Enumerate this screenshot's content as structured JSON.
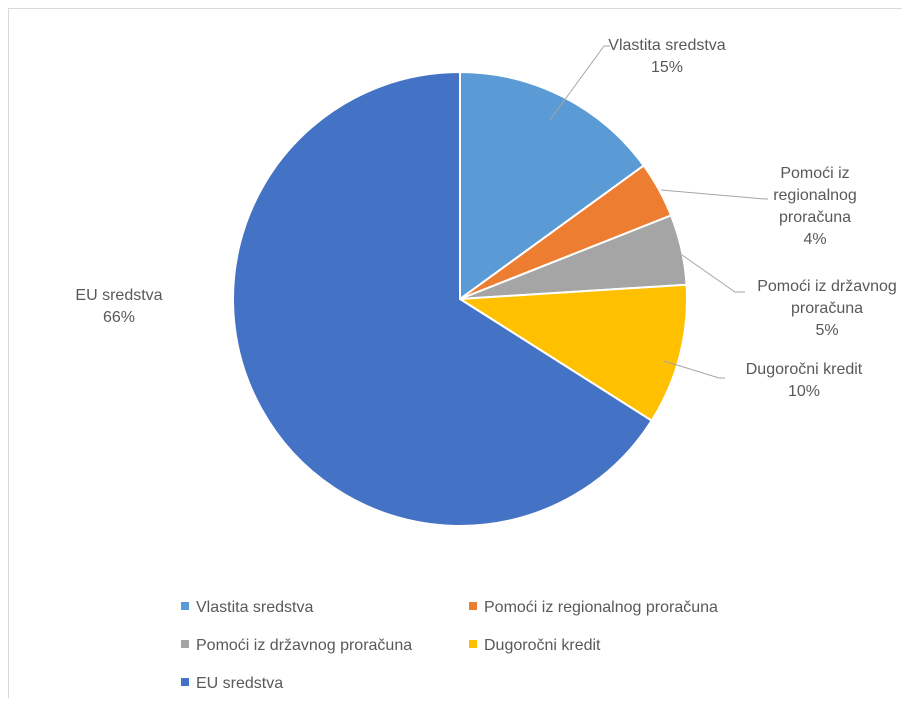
{
  "chart_data": {
    "type": "pie",
    "title": "",
    "categories": [
      "Vlastita sredstva",
      "Pomoći iz regionalnog proračuna",
      "Pomoći iz državnog proračuna",
      "Dugoročni kredit",
      "EU sredstva"
    ],
    "values": [
      15,
      4,
      5,
      10,
      66
    ],
    "value_labels": [
      "15%",
      "4%",
      "5%",
      "10%",
      "66%"
    ],
    "data_labels": [
      [
        "Vlastita sredstva",
        "15%"
      ],
      [
        "Pomoći iz",
        "regionalnog",
        "proračuna",
        "4%"
      ],
      [
        "Pomoći iz državnog",
        "proračuna",
        "5%"
      ],
      [
        "Dugoročni kredit",
        "10%"
      ],
      [
        "EU sredstva",
        "66%"
      ]
    ],
    "colors": [
      "#5B9BD5",
      "#ED7D31",
      "#A5A5A5",
      "#FFC000",
      "#4472C4"
    ],
    "start_angle_deg": 0,
    "direction": "clockwise",
    "legend_position": "bottom"
  }
}
